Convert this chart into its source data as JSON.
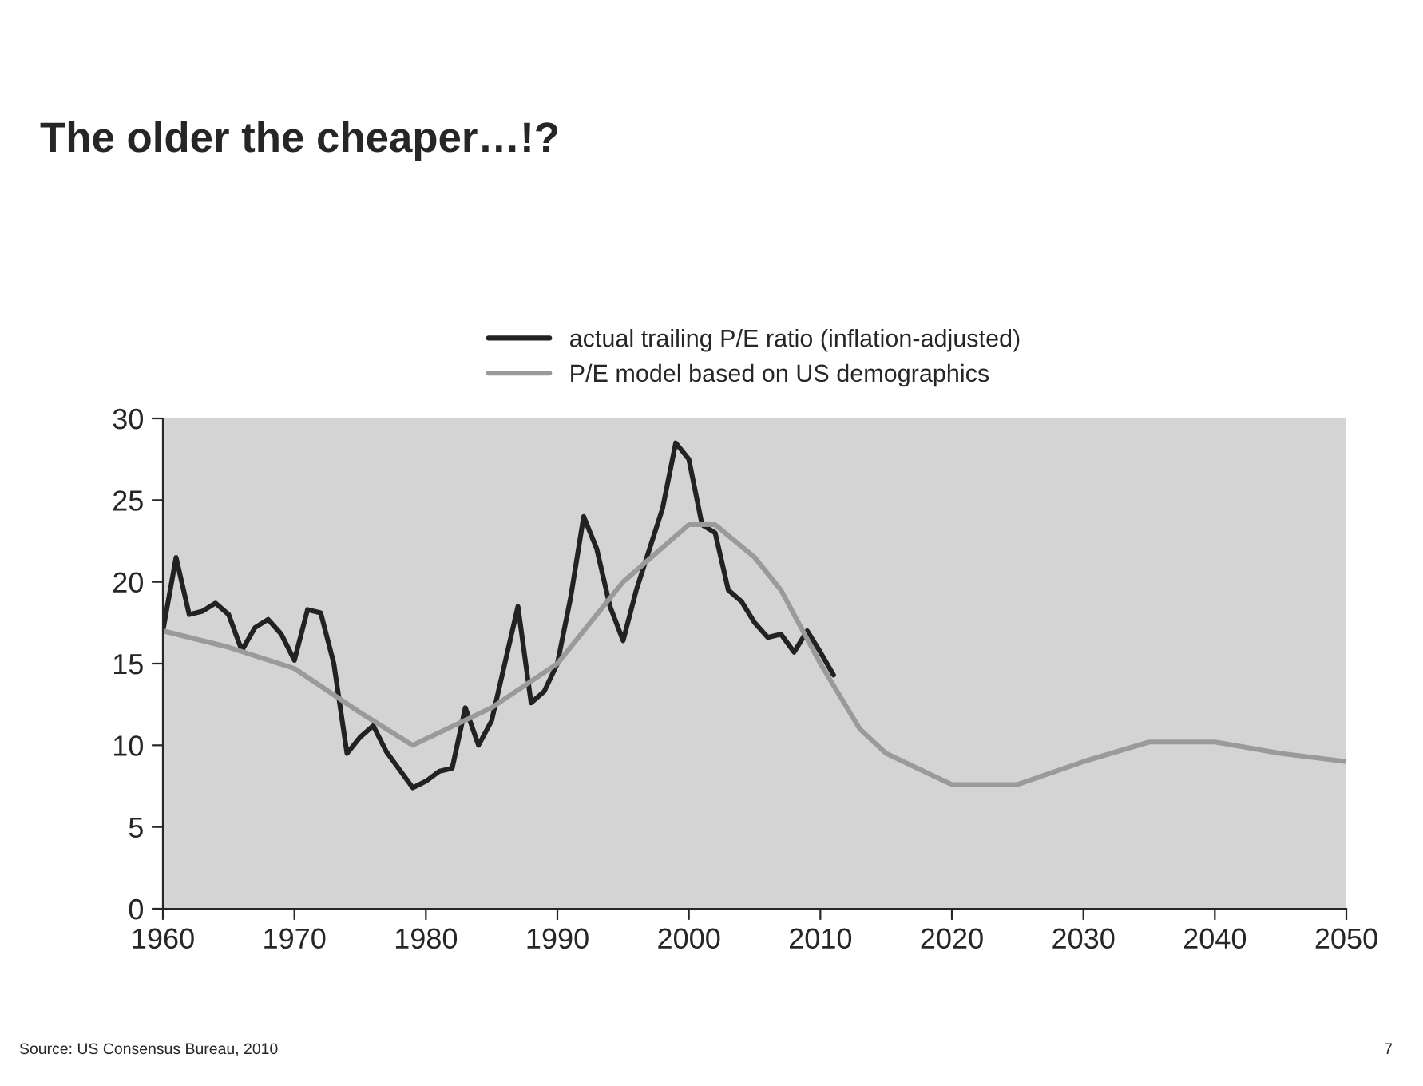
{
  "chart_data": {
    "type": "line",
    "title": "The older the cheaper…!?",
    "annotations": [
      "Source: US Consensus Bureau, 2010",
      "7"
    ],
    "series": [
      {
        "name": "actual trailing P/E ratio (inflation-adjusted)",
        "color": "#222222",
        "x": [
          1960,
          1961,
          1962,
          1963,
          1964,
          1965,
          1966,
          1967,
          1968,
          1969,
          1970,
          1971,
          1972,
          1973,
          1974,
          1975,
          1976,
          1977,
          1978,
          1979,
          1980,
          1981,
          1982,
          1983,
          1984,
          1985,
          1986,
          1987,
          1988,
          1989,
          1990,
          1991,
          1992,
          1993,
          1994,
          1995,
          1996,
          1997,
          1998,
          1999,
          2000,
          2001,
          2002,
          2003,
          2004,
          2005,
          2006,
          2007,
          2008,
          2009,
          2010,
          2011
        ],
        "values": [
          17,
          21.5,
          18,
          18.2,
          18.7,
          18,
          15.8,
          17.2,
          17.7,
          16.8,
          15.2,
          18.3,
          18.1,
          15,
          9.5,
          10.5,
          11.2,
          9.6,
          8.5,
          7.4,
          7.8,
          8.4,
          8.6,
          12.3,
          10,
          11.5,
          15,
          18.5,
          12.6,
          13.3,
          15,
          19,
          24,
          22,
          18.5,
          16.4,
          19.5,
          22,
          24.5,
          28.5,
          27.5,
          23.5,
          23,
          19.5,
          18.8,
          17.5,
          16.6,
          16.8,
          15.7,
          17,
          15.7,
          14.3
        ]
      },
      {
        "name": "P/E model based on US demographics",
        "color": "#9a9a9a",
        "x": [
          1960,
          1965,
          1970,
          1975,
          1979,
          1985,
          1990,
          1995,
          2000,
          2002,
          2005,
          2007,
          2010,
          2013,
          2015,
          2020,
          2025,
          2030,
          2035,
          2040,
          2045,
          2050
        ],
        "values": [
          17,
          16,
          14.7,
          12,
          10,
          12.3,
          15,
          20,
          23.5,
          23.5,
          21.5,
          19.5,
          15,
          11,
          9.5,
          7.6,
          7.6,
          9,
          10.2,
          10.2,
          9.5,
          9
        ]
      }
    ],
    "xlim": [
      1960,
      2050
    ],
    "xticks": [
      1960,
      1970,
      1980,
      1990,
      2000,
      2010,
      2020,
      2030,
      2040,
      2050
    ],
    "ylim": [
      0,
      30
    ],
    "yticks": [
      0,
      5,
      10,
      15,
      20,
      25,
      30
    ],
    "grid": false,
    "legend": "top",
    "line_style": "solid"
  }
}
